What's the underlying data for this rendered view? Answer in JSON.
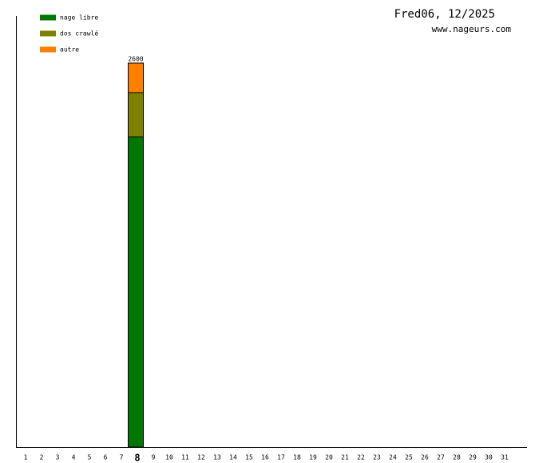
{
  "chart_data": {
    "type": "stacked-bar",
    "title": "Fred06, 12/2025",
    "subtitle": "www.nageurs.com",
    "categories": [
      "1",
      "2",
      "3",
      "4",
      "5",
      "6",
      "7",
      "8",
      "9",
      "10",
      "11",
      "12",
      "13",
      "14",
      "15",
      "16",
      "17",
      "18",
      "19",
      "20",
      "21",
      "22",
      "23",
      "24",
      "25",
      "26",
      "27",
      "28",
      "29",
      "30",
      "31"
    ],
    "highlighted_category": "8",
    "series": [
      {
        "name": "nage libre",
        "color": "#007700",
        "values": [
          null,
          null,
          null,
          null,
          null,
          null,
          null,
          2100,
          null,
          null,
          null,
          null,
          null,
          null,
          null,
          null,
          null,
          null,
          null,
          null,
          null,
          null,
          null,
          null,
          null,
          null,
          null,
          null,
          null,
          null,
          null
        ]
      },
      {
        "name": "dos crawlé",
        "color": "#808000",
        "values": [
          null,
          null,
          null,
          null,
          null,
          null,
          null,
          300,
          null,
          null,
          null,
          null,
          null,
          null,
          null,
          null,
          null,
          null,
          null,
          null,
          null,
          null,
          null,
          null,
          null,
          null,
          null,
          null,
          null,
          null,
          null
        ]
      },
      {
        "name": "autre",
        "color": "#ff8000",
        "values": [
          null,
          null,
          null,
          null,
          null,
          null,
          null,
          200,
          null,
          null,
          null,
          null,
          null,
          null,
          null,
          null,
          null,
          null,
          null,
          null,
          null,
          null,
          null,
          null,
          null,
          null,
          null,
          null,
          null,
          null,
          null
        ]
      }
    ],
    "totals": [
      null,
      null,
      null,
      null,
      null,
      null,
      null,
      2600,
      null,
      null,
      null,
      null,
      null,
      null,
      null,
      null,
      null,
      null,
      null,
      null,
      null,
      null,
      null,
      null,
      null,
      null,
      null,
      null,
      null,
      null,
      null
    ],
    "ylim": [
      0,
      2600
    ],
    "legend": "top-left"
  }
}
